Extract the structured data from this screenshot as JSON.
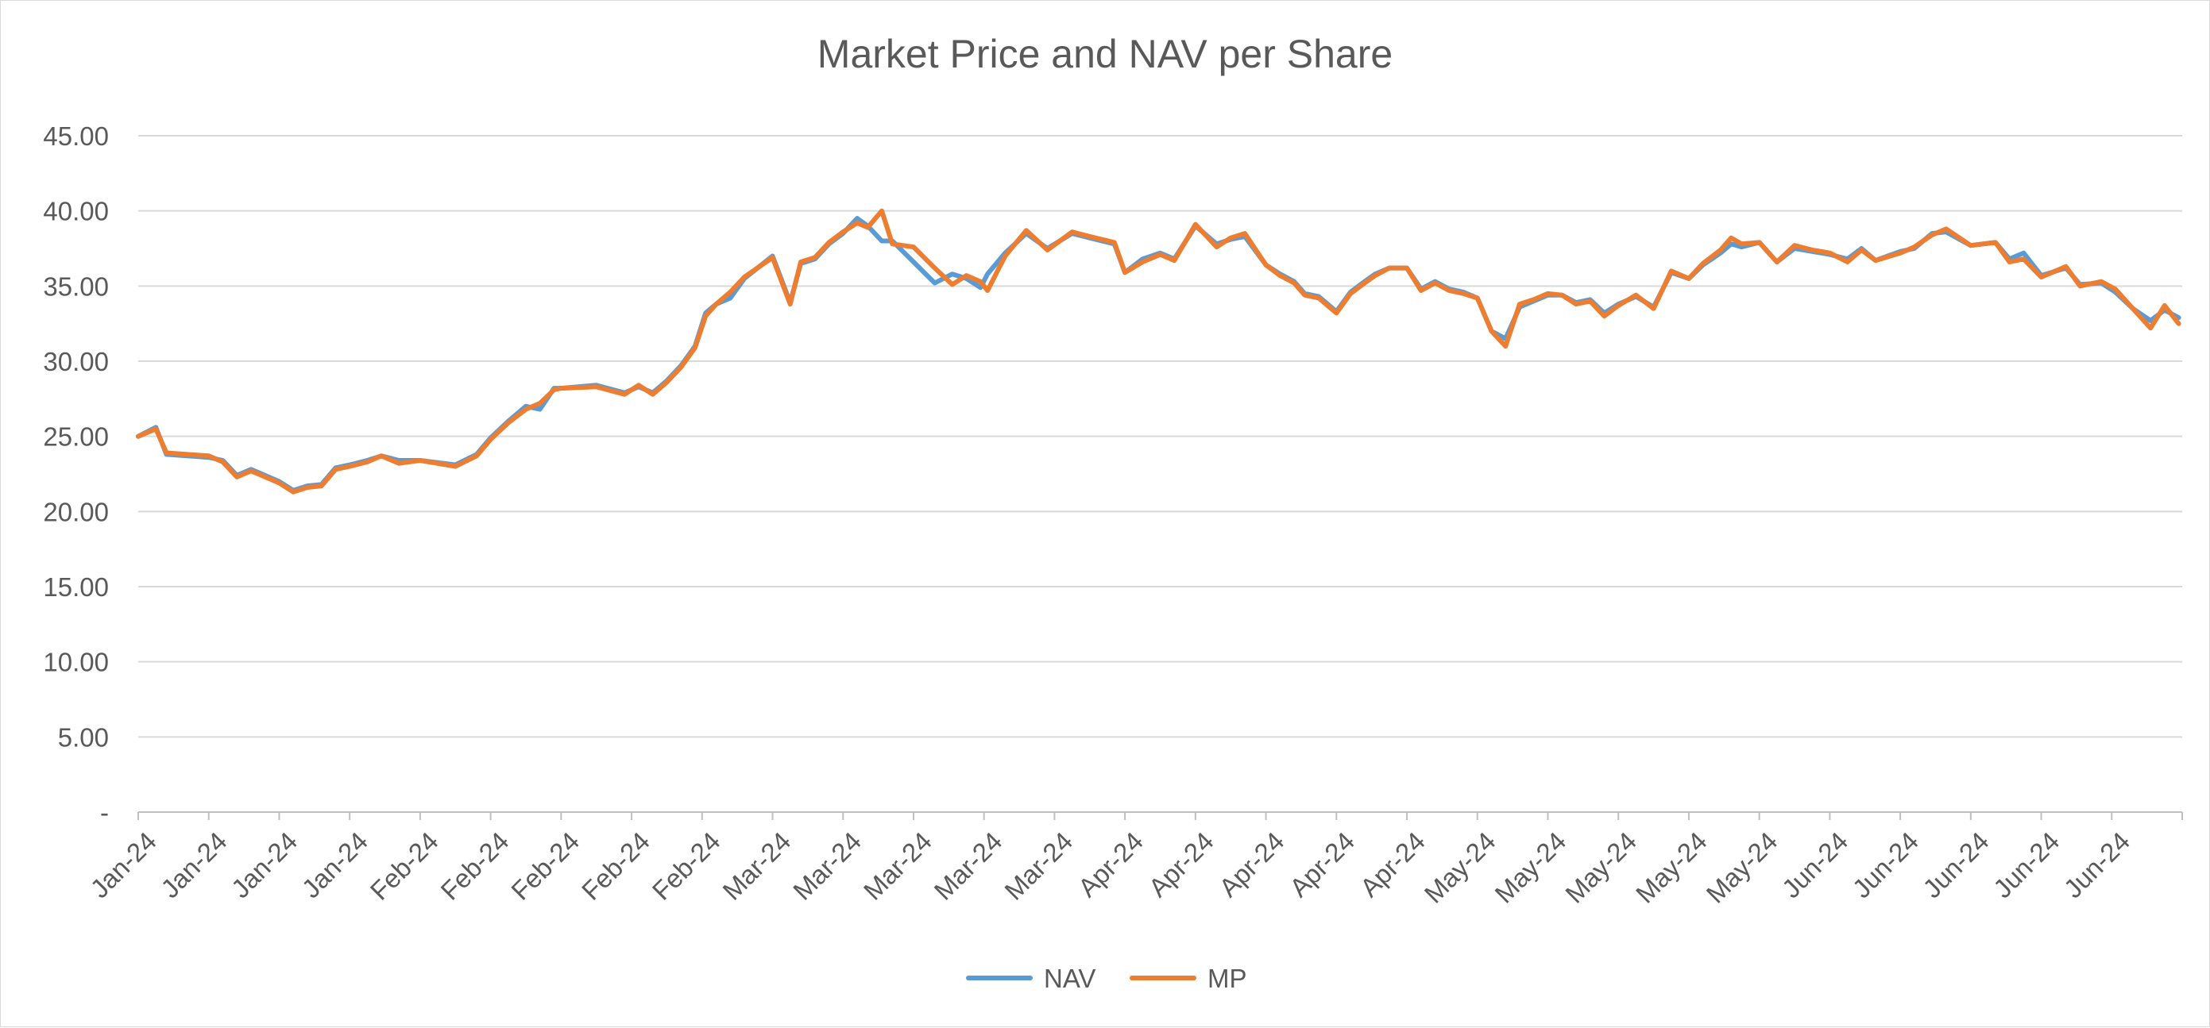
{
  "chart_data": {
    "type": "line",
    "title": "Market Price and NAV per Share",
    "xlabel": "",
    "ylabel": "",
    "ylim": [
      0,
      45
    ],
    "y_ticks": [
      {
        "value": 0,
        "label": "-"
      },
      {
        "value": 5,
        "label": "5.00"
      },
      {
        "value": 10,
        "label": "10.00"
      },
      {
        "value": 15,
        "label": "15.00"
      },
      {
        "value": 20,
        "label": "20.00"
      },
      {
        "value": 25,
        "label": "25.00"
      },
      {
        "value": 30,
        "label": "30.00"
      },
      {
        "value": 35,
        "label": "35.00"
      },
      {
        "value": 40,
        "label": "40.00"
      },
      {
        "value": 45,
        "label": "45.00"
      }
    ],
    "x_tick_labels": [
      "Jan-24",
      "Jan-24",
      "Jan-24",
      "Jan-24",
      "Feb-24",
      "Feb-24",
      "Feb-24",
      "Feb-24",
      "Feb-24",
      "Mar-24",
      "Mar-24",
      "Mar-24",
      "Mar-24",
      "Mar-24",
      "Apr-24",
      "Apr-24",
      "Apr-24",
      "Apr-24",
      "Apr-24",
      "May-24",
      "May-24",
      "May-24",
      "May-24",
      "May-24",
      "Jun-24",
      "Jun-24",
      "Jun-24",
      "Jun-24",
      "Jun-24"
    ],
    "x_range": [
      0,
      29
    ],
    "legend_position": "bottom",
    "series": [
      {
        "name": "NAV",
        "color": "#5B9BD5",
        "x": [
          0.0,
          0.25,
          0.4,
          1.0,
          1.2,
          1.4,
          1.6,
          1.8,
          2.0,
          2.2,
          2.4,
          2.6,
          2.8,
          3.0,
          3.25,
          3.45,
          3.7,
          4.0,
          4.5,
          4.8,
          5.0,
          5.25,
          5.5,
          5.7,
          5.9,
          6.0,
          6.5,
          6.9,
          7.1,
          7.3,
          7.5,
          7.7,
          7.9,
          8.05,
          8.2,
          8.4,
          8.6,
          9.0,
          9.25,
          9.4,
          9.6,
          9.8,
          10.0,
          10.2,
          10.35,
          10.55,
          10.7,
          11.0,
          11.3,
          11.55,
          11.75,
          11.95,
          12.05,
          12.3,
          12.6,
          12.9,
          13.25,
          13.5,
          13.85,
          14.0,
          14.25,
          14.5,
          14.7,
          15.0,
          15.3,
          15.5,
          15.7,
          16.0,
          16.2,
          16.4,
          16.55,
          16.75,
          17.0,
          17.2,
          17.4,
          17.55,
          17.75,
          18.0,
          18.2,
          18.4,
          18.6,
          18.8,
          19.0,
          19.2,
          19.4,
          19.6,
          19.8,
          20.0,
          20.2,
          20.4,
          20.6,
          20.8,
          21.0,
          21.25,
          21.5,
          21.75,
          22.0,
          22.2,
          22.45,
          22.6,
          22.75,
          23.0,
          23.25,
          23.5,
          23.75,
          24.0,
          24.25,
          24.45,
          24.65,
          25.0,
          25.2,
          25.45,
          25.65,
          26.0,
          26.35,
          26.55,
          26.75,
          27.0,
          27.35,
          27.55,
          27.85,
          28.05,
          28.3,
          28.55,
          28.75,
          28.95
        ],
        "values": [
          25.0,
          25.6,
          23.8,
          23.6,
          23.4,
          22.4,
          22.8,
          22.4,
          22.0,
          21.4,
          21.7,
          21.8,
          22.9,
          23.1,
          23.4,
          23.7,
          23.4,
          23.4,
          23.1,
          23.8,
          24.9,
          26.0,
          27.0,
          26.8,
          28.2,
          28.2,
          28.4,
          27.9,
          28.3,
          27.9,
          28.7,
          29.7,
          31.0,
          33.2,
          33.8,
          34.2,
          35.5,
          37.0,
          33.9,
          36.5,
          36.8,
          37.8,
          38.5,
          39.5,
          39.0,
          38.0,
          38.0,
          36.6,
          35.2,
          35.8,
          35.5,
          34.9,
          35.8,
          37.2,
          38.5,
          37.5,
          38.5,
          38.2,
          37.8,
          35.9,
          36.8,
          37.2,
          36.8,
          39.0,
          37.8,
          38.1,
          38.3,
          36.4,
          35.8,
          35.3,
          34.5,
          34.3,
          33.3,
          34.6,
          35.3,
          35.8,
          36.2,
          36.2,
          34.8,
          35.3,
          34.8,
          34.6,
          34.2,
          32.0,
          31.5,
          33.6,
          34.0,
          34.4,
          34.4,
          33.9,
          34.1,
          33.2,
          33.8,
          34.3,
          33.6,
          35.9,
          35.5,
          36.4,
          37.2,
          37.8,
          37.6,
          37.9,
          36.6,
          37.5,
          37.3,
          37.1,
          36.8,
          37.5,
          36.7,
          37.3,
          37.5,
          38.5,
          38.6,
          37.7,
          37.9,
          36.8,
          37.2,
          35.7,
          36.2,
          35.1,
          35.2,
          34.6,
          33.5,
          32.7,
          33.4,
          32.9
        ]
      },
      {
        "name": "MP",
        "color": "#ED7D31",
        "x": [
          0.0,
          0.25,
          0.4,
          1.0,
          1.2,
          1.4,
          1.6,
          1.8,
          2.0,
          2.2,
          2.4,
          2.6,
          2.8,
          3.0,
          3.25,
          3.45,
          3.7,
          4.0,
          4.5,
          4.8,
          5.0,
          5.25,
          5.5,
          5.7,
          5.9,
          6.0,
          6.5,
          6.9,
          7.1,
          7.3,
          7.5,
          7.7,
          7.9,
          8.05,
          8.2,
          8.4,
          8.6,
          9.0,
          9.25,
          9.4,
          9.6,
          9.8,
          10.0,
          10.2,
          10.35,
          10.55,
          10.7,
          11.0,
          11.3,
          11.55,
          11.75,
          11.95,
          12.05,
          12.3,
          12.6,
          12.9,
          13.25,
          13.5,
          13.85,
          14.0,
          14.25,
          14.5,
          14.7,
          15.0,
          15.3,
          15.5,
          15.7,
          16.0,
          16.2,
          16.4,
          16.55,
          16.75,
          17.0,
          17.2,
          17.4,
          17.55,
          17.75,
          18.0,
          18.2,
          18.4,
          18.6,
          18.8,
          19.0,
          19.2,
          19.4,
          19.6,
          19.8,
          20.0,
          20.2,
          20.4,
          20.6,
          20.8,
          21.0,
          21.25,
          21.5,
          21.75,
          22.0,
          22.2,
          22.45,
          22.6,
          22.75,
          23.0,
          23.25,
          23.5,
          23.75,
          24.0,
          24.25,
          24.45,
          24.65,
          25.0,
          25.2,
          25.45,
          25.65,
          26.0,
          26.35,
          26.55,
          26.75,
          27.0,
          27.35,
          27.55,
          27.85,
          28.05,
          28.3,
          28.55,
          28.75,
          28.95
        ],
        "values": [
          25.0,
          25.5,
          23.9,
          23.7,
          23.3,
          22.3,
          22.7,
          22.3,
          21.9,
          21.3,
          21.6,
          21.7,
          22.8,
          23.0,
          23.3,
          23.7,
          23.2,
          23.4,
          23.0,
          23.7,
          24.8,
          25.9,
          26.8,
          27.2,
          28.1,
          28.2,
          28.3,
          27.8,
          28.4,
          27.8,
          28.6,
          29.6,
          30.9,
          33.0,
          33.8,
          34.6,
          35.6,
          36.9,
          33.8,
          36.6,
          36.9,
          37.9,
          38.6,
          39.2,
          38.9,
          40.0,
          37.8,
          37.6,
          36.2,
          35.1,
          35.7,
          35.3,
          34.7,
          37.0,
          38.7,
          37.4,
          38.6,
          38.3,
          37.9,
          35.9,
          36.6,
          37.1,
          36.7,
          39.1,
          37.6,
          38.2,
          38.5,
          36.4,
          35.7,
          35.2,
          34.4,
          34.2,
          33.2,
          34.5,
          35.2,
          35.7,
          36.2,
          36.2,
          34.7,
          35.2,
          34.7,
          34.5,
          34.2,
          32.0,
          31.0,
          33.8,
          34.1,
          34.5,
          34.4,
          33.8,
          34.0,
          33.0,
          33.7,
          34.4,
          33.5,
          36.0,
          35.5,
          36.5,
          37.4,
          38.2,
          37.8,
          37.9,
          36.6,
          37.7,
          37.4,
          37.2,
          36.6,
          37.4,
          36.7,
          37.2,
          37.6,
          38.4,
          38.8,
          37.7,
          37.9,
          36.6,
          36.8,
          35.6,
          36.3,
          35.0,
          35.3,
          34.8,
          33.5,
          32.2,
          33.7,
          32.5
        ]
      }
    ]
  }
}
